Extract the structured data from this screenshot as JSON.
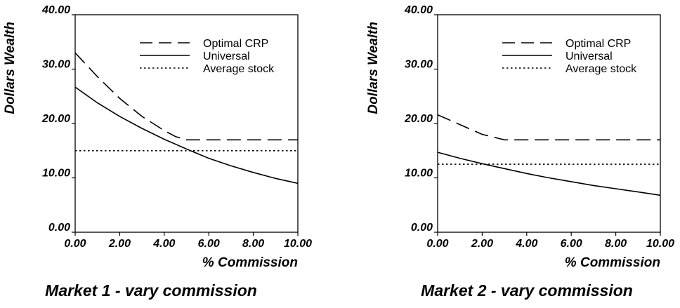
{
  "chart_data": [
    {
      "type": "line",
      "title": "Market 1 - vary commission",
      "xlabel": "% Commission",
      "ylabel": "Dollars Wealth",
      "xlim": [
        0,
        10
      ],
      "ylim": [
        0,
        40
      ],
      "x_ticks": [
        "0.00",
        "2.00",
        "4.00",
        "6.00",
        "8.00",
        "10.00"
      ],
      "y_ticks": [
        "0.00",
        "10.00",
        "20.00",
        "30.00",
        "40.00"
      ],
      "legend_position": "top-right",
      "series": [
        {
          "name": "Optimal CRP",
          "style": "dashed",
          "x": [
            0,
            1,
            2,
            3,
            4,
            4.5,
            5,
            6,
            7,
            8,
            9,
            10
          ],
          "y": [
            33,
            28.6,
            24.6,
            21.3,
            18.7,
            17.6,
            17,
            17,
            17,
            17,
            17,
            17
          ]
        },
        {
          "name": "Universal",
          "style": "solid",
          "x": [
            0,
            1,
            2,
            3,
            4,
            5,
            6,
            7,
            8,
            9,
            10
          ],
          "y": [
            26.7,
            23.8,
            21.3,
            19.1,
            17.1,
            15.3,
            13.6,
            12.2,
            11,
            9.9,
            9.0
          ]
        },
        {
          "name": "Average stock",
          "style": "dotted",
          "x": [
            0,
            10
          ],
          "y": [
            15,
            15
          ]
        }
      ]
    },
    {
      "type": "line",
      "title": "Market 2 - vary commission",
      "xlabel": "% Commission",
      "ylabel": "Dollars Wealth",
      "xlim": [
        0,
        10
      ],
      "ylim": [
        0,
        40
      ],
      "x_ticks": [
        "0.00",
        "2.00",
        "4.00",
        "6.00",
        "8.00",
        "10.00"
      ],
      "y_ticks": [
        "0.00",
        "10.00",
        "20.00",
        "30.00",
        "40.00"
      ],
      "legend_position": "top-right",
      "series": [
        {
          "name": "Optimal CRP",
          "style": "dashed",
          "x": [
            0,
            1,
            2,
            3,
            4,
            5,
            6,
            7,
            8,
            9,
            10
          ],
          "y": [
            21.6,
            19.8,
            18,
            17,
            17,
            17,
            17,
            17,
            17,
            17,
            17
          ]
        },
        {
          "name": "Universal",
          "style": "solid",
          "x": [
            0,
            1,
            2,
            3,
            4,
            5,
            6,
            7,
            8,
            9,
            10
          ],
          "y": [
            14.7,
            13.6,
            12.6,
            11.7,
            10.8,
            10,
            9.3,
            8.6,
            8,
            7.4,
            6.8
          ]
        },
        {
          "name": "Average stock",
          "style": "dotted",
          "x": [
            0,
            10
          ],
          "y": [
            12.5,
            12.5
          ]
        }
      ]
    }
  ]
}
